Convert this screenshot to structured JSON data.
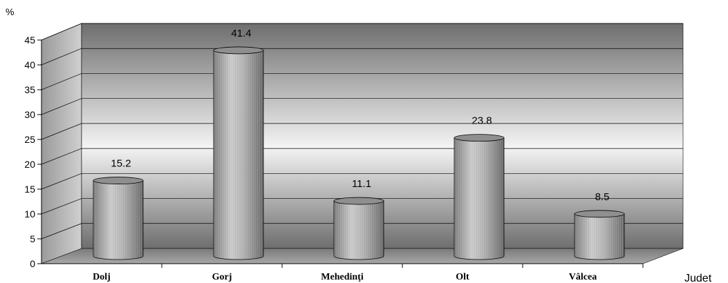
{
  "chart_data": {
    "type": "bar",
    "categories": [
      "Dolj",
      "Gorj",
      "Mehedinţi",
      "Olt",
      "Vâlcea"
    ],
    "values": [
      15.2,
      41.4,
      11.1,
      23.8,
      8.5
    ],
    "value_labels": [
      "15.2",
      "41.4",
      "11.1",
      "23.8",
      "8.5"
    ],
    "ylabel": "%",
    "xlabel": "Judet",
    "ylim": [
      0,
      45
    ],
    "yticks": [
      "0",
      "5",
      "10",
      "15",
      "20",
      "25",
      "30",
      "35",
      "40",
      "45"
    ],
    "grid": true,
    "style": "3d-cylinder",
    "colors": {
      "bar": "#b4b4b4",
      "wall_dark": "#777777",
      "wall_light": "#f2f2f2",
      "floor": "#8c8c8c"
    }
  }
}
